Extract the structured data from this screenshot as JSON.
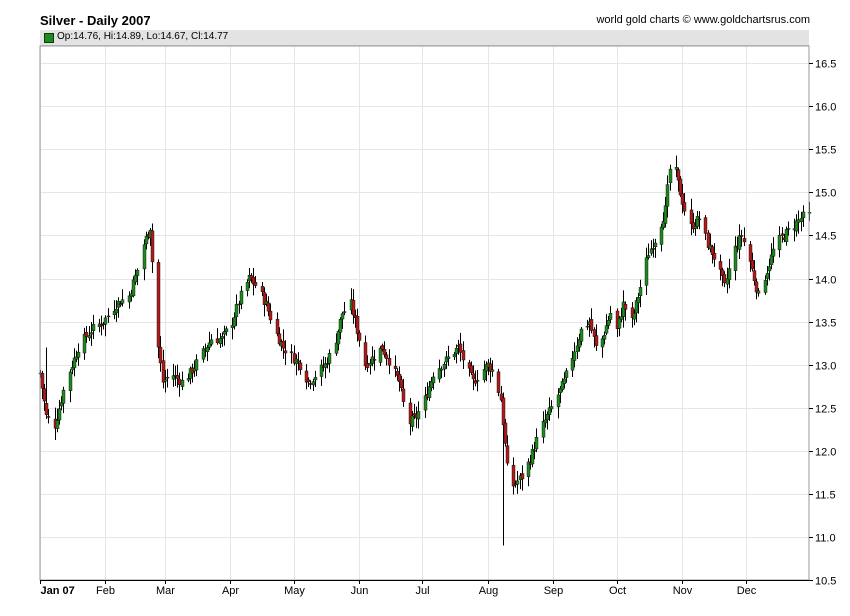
{
  "header": {
    "title": "Silver - Daily 2007",
    "credit": "world gold charts © www.goldchartsrus.com",
    "ohlc": "Op:14.76, Hi:14.89, Lo:14.67, Cl:14.77"
  },
  "colors": {
    "up": "#1f8a1f",
    "down": "#b01c1c",
    "wick": "#000000",
    "grid": "#e6e6e6",
    "header_band": "#e3e3e3"
  },
  "chart_data": {
    "type": "candlestick",
    "title": "Silver - Daily 2007",
    "ylim": [
      10.5,
      16.7
    ],
    "y_ticks": [
      10.5,
      11.0,
      11.5,
      12.0,
      12.5,
      13.0,
      13.5,
      14.0,
      14.5,
      15.0,
      15.5,
      16.0,
      16.5
    ],
    "x_ticks": [
      {
        "label": "Jan 07",
        "day": 0
      },
      {
        "label": "Feb",
        "day": 31
      },
      {
        "label": "Mar",
        "day": 59
      },
      {
        "label": "Apr",
        "day": 90
      },
      {
        "label": "May",
        "day": 120
      },
      {
        "label": "Jun",
        "day": 151
      },
      {
        "label": "Jul",
        "day": 181
      },
      {
        "label": "Aug",
        "day": 212
      },
      {
        "label": "Sep",
        "day": 243
      },
      {
        "label": "Oct",
        "day": 273
      },
      {
        "label": "Nov",
        "day": 304
      },
      {
        "label": "Dec",
        "day": 334
      }
    ],
    "x_range_days": [
      0,
      364
    ],
    "grid": true,
    "close_anchors": [
      [
        0,
        12.9
      ],
      [
        3,
        12.4
      ],
      [
        7,
        12.3
      ],
      [
        12,
        12.8
      ],
      [
        18,
        13.2
      ],
      [
        24,
        13.4
      ],
      [
        30,
        13.5
      ],
      [
        36,
        13.7
      ],
      [
        42,
        13.8
      ],
      [
        46,
        14.1
      ],
      [
        49,
        14.4
      ],
      [
        52,
        14.6
      ],
      [
        55,
        13.4
      ],
      [
        58,
        12.8
      ],
      [
        62,
        12.9
      ],
      [
        67,
        12.8
      ],
      [
        71,
        12.9
      ],
      [
        76,
        13.1
      ],
      [
        81,
        13.3
      ],
      [
        86,
        13.3
      ],
      [
        91,
        13.5
      ],
      [
        95,
        13.8
      ],
      [
        99,
        14.0
      ],
      [
        103,
        13.9
      ],
      [
        107,
        13.7
      ],
      [
        111,
        13.4
      ],
      [
        115,
        13.2
      ],
      [
        119,
        13.1
      ],
      [
        123,
        13.0
      ],
      [
        127,
        12.8
      ],
      [
        131,
        12.9
      ],
      [
        135,
        13.0
      ],
      [
        139,
        13.2
      ],
      [
        143,
        13.6
      ],
      [
        147,
        13.7
      ],
      [
        150,
        13.4
      ],
      [
        154,
        13.0
      ],
      [
        158,
        13.1
      ],
      [
        162,
        13.2
      ],
      [
        166,
        13.0
      ],
      [
        170,
        12.8
      ],
      [
        174,
        12.3
      ],
      [
        178,
        12.4
      ],
      [
        182,
        12.6
      ],
      [
        186,
        12.9
      ],
      [
        190,
        13.0
      ],
      [
        194,
        13.1
      ],
      [
        198,
        13.2
      ],
      [
        201,
        13.0
      ],
      [
        205,
        12.8
      ],
      [
        208,
        12.9
      ],
      [
        212,
        13.0
      ],
      [
        215,
        12.9
      ],
      [
        218,
        12.6
      ],
      [
        221,
        11.8
      ],
      [
        224,
        11.6
      ],
      [
        228,
        11.7
      ],
      [
        232,
        11.9
      ],
      [
        236,
        12.2
      ],
      [
        240,
        12.4
      ],
      [
        244,
        12.6
      ],
      [
        248,
        12.8
      ],
      [
        252,
        13.1
      ],
      [
        256,
        13.4
      ],
      [
        260,
        13.5
      ],
      [
        263,
        13.2
      ],
      [
        266,
        13.3
      ],
      [
        270,
        13.6
      ],
      [
        273,
        13.4
      ],
      [
        276,
        13.7
      ],
      [
        280,
        13.5
      ],
      [
        284,
        13.9
      ],
      [
        288,
        14.3
      ],
      [
        292,
        14.5
      ],
      [
        296,
        14.8
      ],
      [
        299,
        15.5
      ],
      [
        302,
        15.1
      ],
      [
        305,
        14.8
      ],
      [
        308,
        14.6
      ],
      [
        312,
        14.7
      ],
      [
        316,
        14.4
      ],
      [
        320,
        14.2
      ],
      [
        324,
        13.9
      ],
      [
        328,
        14.3
      ],
      [
        332,
        14.5
      ],
      [
        336,
        14.2
      ],
      [
        340,
        13.8
      ],
      [
        344,
        14.1
      ],
      [
        348,
        14.4
      ],
      [
        352,
        14.5
      ],
      [
        356,
        14.6
      ],
      [
        360,
        14.7
      ],
      [
        364,
        14.77
      ]
    ],
    "last_bar": {
      "open": 14.76,
      "high": 14.89,
      "low": 14.67,
      "close": 14.77
    }
  }
}
